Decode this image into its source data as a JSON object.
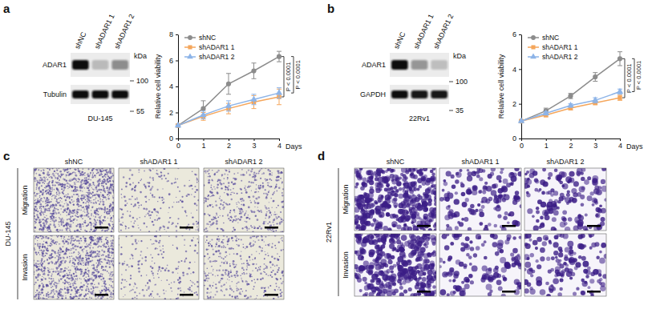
{
  "panel_labels": [
    "a",
    "b",
    "c",
    "d"
  ],
  "blots": [
    {
      "lanes": [
        "shNC",
        "shADAR1 1",
        "shADAR1 2"
      ],
      "rows": [
        "ADAR1",
        "Tubulin"
      ],
      "unit": "kDa",
      "mw_markers": [
        100,
        55
      ],
      "cell_line": "DU-145"
    },
    {
      "lanes": [
        "shNC",
        "shADAR1 1",
        "shADAR1 2"
      ],
      "rows": [
        "ADAR1",
        "GAPDH"
      ],
      "unit": "kDa",
      "mw_markers": [
        100,
        35
      ],
      "cell_line": "22Rv1"
    }
  ],
  "chart_data": [
    {
      "type": "line",
      "y_label": "Relative cell viability",
      "x_label": "Days",
      "x": [
        0,
        1,
        2,
        3,
        4
      ],
      "xlim": [
        0,
        4
      ],
      "xticks": [
        0,
        1,
        2,
        3,
        4
      ],
      "ylim": [
        0,
        8
      ],
      "yticks": [
        0,
        2,
        4,
        6,
        8
      ],
      "legend": "upper left",
      "series": [
        {
          "name": "shNC",
          "color": "#8c8c8c",
          "marker": "circle",
          "values": [
            1,
            2.3,
            4.2,
            5.2,
            6.3
          ],
          "errors": [
            0,
            0.6,
            0.8,
            0.6,
            0.4
          ]
        },
        {
          "name": "shADAR1 1",
          "color": "#f5a65b",
          "marker": "square",
          "values": [
            1,
            1.7,
            2.3,
            2.8,
            3.2
          ],
          "errors": [
            0,
            0.3,
            0.4,
            0.5,
            0.6
          ]
        },
        {
          "name": "shADAR1 2",
          "color": "#8db4e8",
          "marker": "triangle",
          "values": [
            1,
            1.8,
            2.5,
            3.0,
            3.5
          ],
          "errors": [
            0,
            0.3,
            0.4,
            0.4,
            0.4
          ]
        }
      ],
      "annotations": [
        {
          "text": "P < 0.0001",
          "from": "shNC",
          "to": "shADAR1 1"
        },
        {
          "text": "P < 0.0001",
          "from": "shNC",
          "to": "shADAR1 2"
        }
      ]
    },
    {
      "type": "line",
      "y_label": "Relative cell viability",
      "x_label": "Days",
      "x": [
        0,
        1,
        2,
        3,
        4
      ],
      "xlim": [
        0,
        4
      ],
      "xticks": [
        0,
        1,
        2,
        3,
        4
      ],
      "ylim": [
        0,
        6
      ],
      "yticks": [
        0,
        2,
        4,
        6
      ],
      "legend": "upper left",
      "series": [
        {
          "name": "shNC",
          "color": "#8c8c8c",
          "marker": "circle",
          "values": [
            1,
            1.6,
            2.45,
            3.55,
            4.6
          ],
          "errors": [
            0,
            0.15,
            0.15,
            0.25,
            0.4
          ]
        },
        {
          "name": "shADAR1 1",
          "color": "#f5a65b",
          "marker": "square",
          "values": [
            1,
            1.35,
            1.75,
            2.05,
            2.35
          ],
          "errors": [
            0,
            0.1,
            0.1,
            0.1,
            0.15
          ]
        },
        {
          "name": "shADAR1 2",
          "color": "#8db4e8",
          "marker": "triangle",
          "values": [
            1,
            1.45,
            1.9,
            2.2,
            2.7
          ],
          "errors": [
            0,
            0.1,
            0.1,
            0.15,
            0.15
          ]
        }
      ],
      "annotations": [
        {
          "text": "P < 0.0001",
          "from": "shNC",
          "to": "shADAR1 1"
        },
        {
          "text": "P < 0.0001",
          "from": "shNC",
          "to": "shADAR1 2"
        }
      ]
    }
  ],
  "assays": [
    {
      "cell_line": "DU-145",
      "columns": [
        "shNC",
        "shADAR1 1",
        "shADAR1 2"
      ],
      "rows": [
        "Migration",
        "Invasion"
      ]
    },
    {
      "cell_line": "22Rv1",
      "columns": [
        "shNC",
        "shADAR1 1",
        "shADAR1 2"
      ],
      "rows": [
        "Migration",
        "Invasion"
      ]
    }
  ]
}
